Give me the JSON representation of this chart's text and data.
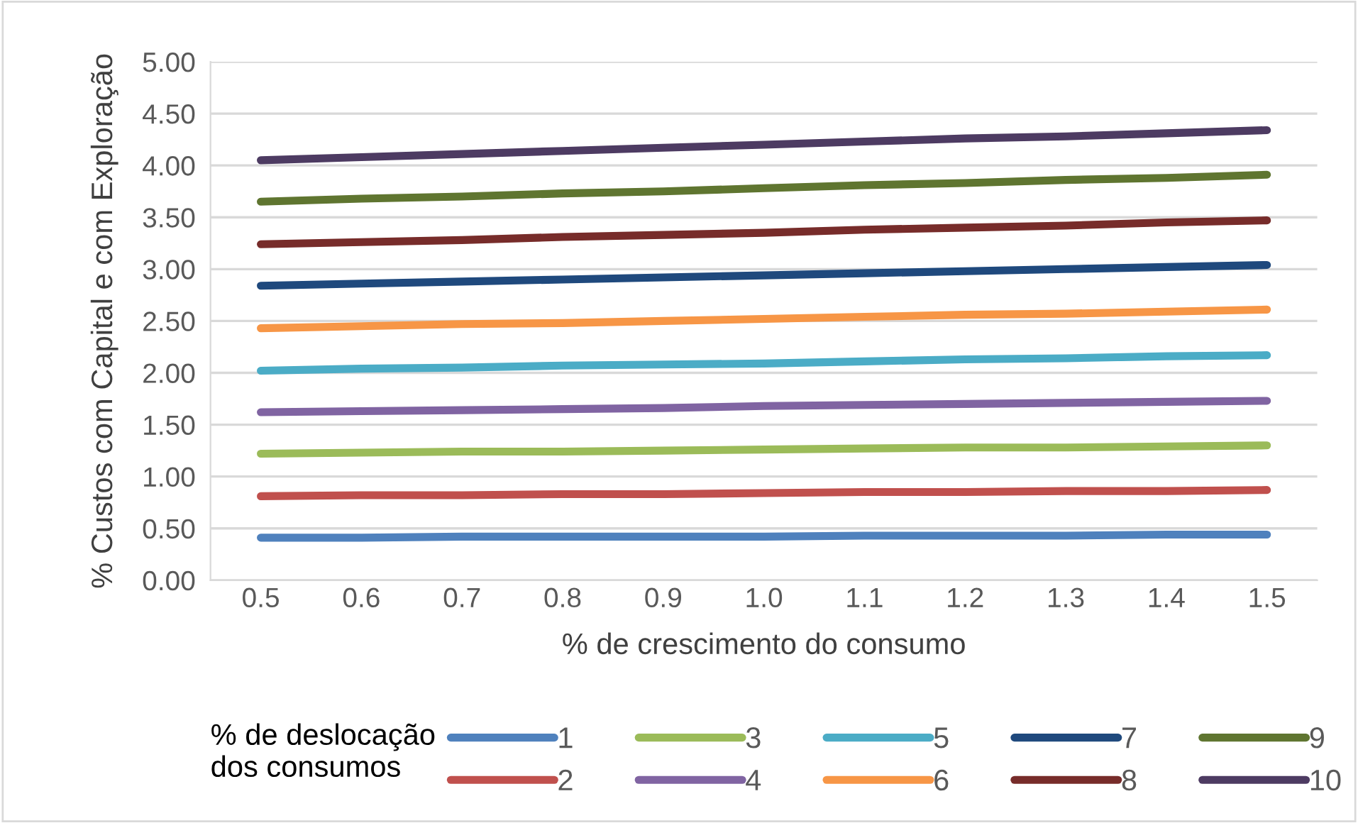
{
  "chart_data": {
    "type": "line",
    "xlabel": "% de crescimento do consumo",
    "ylabel": "% Custos com Capital e com Exploração",
    "legend_title": "% de deslocação\ndos consumos",
    "categories": [
      "0.5",
      "0.6",
      "0.7",
      "0.8",
      "0.9",
      "1.0",
      "1.1",
      "1.2",
      "1.3",
      "1.4",
      "1.5"
    ],
    "series": [
      {
        "name": "1",
        "color": "#4f81bd",
        "values": [
          0.41,
          0.41,
          0.42,
          0.42,
          0.42,
          0.42,
          0.43,
          0.43,
          0.43,
          0.44,
          0.44
        ]
      },
      {
        "name": "2",
        "color": "#c0504d",
        "values": [
          0.81,
          0.82,
          0.82,
          0.83,
          0.83,
          0.84,
          0.85,
          0.85,
          0.86,
          0.86,
          0.87
        ]
      },
      {
        "name": "3",
        "color": "#9bbb59",
        "values": [
          1.22,
          1.23,
          1.24,
          1.24,
          1.25,
          1.26,
          1.27,
          1.28,
          1.28,
          1.29,
          1.3
        ]
      },
      {
        "name": "4",
        "color": "#8064a2",
        "values": [
          1.62,
          1.63,
          1.64,
          1.65,
          1.66,
          1.68,
          1.69,
          1.7,
          1.71,
          1.72,
          1.73
        ]
      },
      {
        "name": "5",
        "color": "#4bacc6",
        "values": [
          2.02,
          2.04,
          2.05,
          2.07,
          2.08,
          2.09,
          2.11,
          2.13,
          2.14,
          2.16,
          2.17
        ]
      },
      {
        "name": "6",
        "color": "#f79646",
        "values": [
          2.43,
          2.45,
          2.47,
          2.48,
          2.5,
          2.52,
          2.54,
          2.56,
          2.57,
          2.59,
          2.61
        ]
      },
      {
        "name": "7",
        "color": "#1f497d",
        "values": [
          2.84,
          2.86,
          2.88,
          2.9,
          2.92,
          2.94,
          2.96,
          2.98,
          3.0,
          3.02,
          3.04
        ]
      },
      {
        "name": "8",
        "color": "#772c2a",
        "values": [
          3.24,
          3.26,
          3.28,
          3.31,
          3.33,
          3.35,
          3.38,
          3.4,
          3.42,
          3.45,
          3.47
        ]
      },
      {
        "name": "9",
        "color": "#5f7530",
        "values": [
          3.65,
          3.68,
          3.7,
          3.73,
          3.75,
          3.78,
          3.81,
          3.83,
          3.86,
          3.88,
          3.91
        ]
      },
      {
        "name": "10",
        "color": "#4d3b62",
        "values": [
          4.05,
          4.08,
          4.11,
          4.14,
          4.17,
          4.2,
          4.23,
          4.26,
          4.28,
          4.31,
          4.34
        ]
      }
    ],
    "ylim": [
      0,
      5
    ],
    "yticks": [
      {
        "value": 0,
        "label": "0.00"
      },
      {
        "value": 0.5,
        "label": "0.50"
      },
      {
        "value": 1,
        "label": "1.00"
      },
      {
        "value": 1.5,
        "label": "1.50"
      },
      {
        "value": 2,
        "label": "2.00"
      },
      {
        "value": 2.5,
        "label": "2.50"
      },
      {
        "value": 3,
        "label": "3.00"
      },
      {
        "value": 3.5,
        "label": "3.50"
      },
      {
        "value": 4,
        "label": "4.00"
      },
      {
        "value": 4.5,
        "label": "4.50"
      },
      {
        "value": 5,
        "label": "5.00"
      }
    ],
    "grid": "y",
    "legend": "bottom",
    "marker": "none",
    "line_style": "solid"
  }
}
